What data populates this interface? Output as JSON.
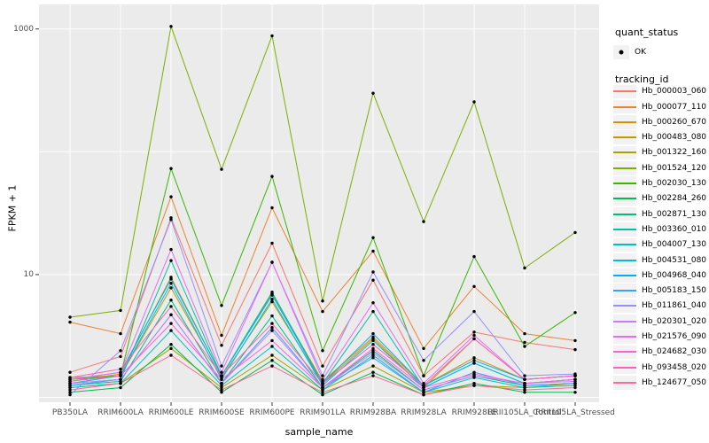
{
  "figure": {
    "background": "#FFFFFF",
    "panel_bg": "#EBEBEB",
    "grid_color": "#FFFFFF",
    "axis_text_color": "#4D4D4D",
    "tick_color": "#333333",
    "point_color": "#000000",
    "legend_key_bg": "#F2F2F2"
  },
  "axes": {
    "y_title": "FPKM + 1",
    "x_title": "sample_name",
    "y_tick_labels": [
      "1000",
      "10"
    ],
    "y_tick_values": [
      1000,
      10
    ]
  },
  "legend": {
    "quant_title": "quant_status",
    "quant_items": [
      {
        "label": "OK",
        "symbol": "point"
      }
    ],
    "tracking_title": "tracking_id"
  },
  "chart_data": {
    "type": "line",
    "title": "",
    "xlabel": "sample_name",
    "ylabel": "FPKM + 1",
    "y_scale": "log10",
    "ylim": [
      1,
      1200
    ],
    "y_breaks_labeled": [
      10,
      1000
    ],
    "y_gridlines": [
      1,
      10,
      100,
      1000
    ],
    "grid": true,
    "legend_position": "right",
    "point_shape": "filled-black-circle",
    "quant_status_all": "OK",
    "categories": [
      "PB350LA",
      "RRIM600LA",
      "RRIM600LE",
      "RRIM600SE",
      "RRIM600PE",
      "RRIM901LA",
      "RRIM928BA",
      "RRIM928LA",
      "RRIM928LE",
      "RRII105LA_Control",
      "RRII105LA_Stressed"
    ],
    "series": [
      {
        "name": "Hb_000003_060",
        "color": "#F8766D",
        "values": [
          1.6,
          2.15,
          29,
          2.65,
          18,
          1.8,
          9.0,
          1.5,
          3.4,
          2.8,
          2.45
        ]
      },
      {
        "name": "Hb_000077_110",
        "color": "#EA8331",
        "values": [
          4.1,
          3.3,
          43,
          3.2,
          35,
          5.0,
          15.5,
          2.5,
          8.0,
          3.3,
          2.9
        ]
      },
      {
        "name": "Hb_000260_670",
        "color": "#D89000",
        "values": [
          1.35,
          1.55,
          9.5,
          1.5,
          7.0,
          1.35,
          3.1,
          1.25,
          2.1,
          1.4,
          1.5
        ]
      },
      {
        "name": "Hb_000483_080",
        "color": "#C09B00",
        "values": [
          1.45,
          1.5,
          7.8,
          1.45,
          6.0,
          1.3,
          3.0,
          1.2,
          3.0,
          1.4,
          1.5
        ]
      },
      {
        "name": "Hb_001322_160",
        "color": "#A3A500",
        "values": [
          1.2,
          1.3,
          2.5,
          1.2,
          2.2,
          1.15,
          1.8,
          1.1,
          1.25,
          1.2,
          1.3
        ]
      },
      {
        "name": "Hb_001524_120",
        "color": "#7CAE00",
        "values": [
          4.5,
          5.1,
          1050,
          72,
          880,
          6.1,
          300,
          27,
          255,
          11.3,
          22
        ]
      },
      {
        "name": "Hb_002030_130",
        "color": "#39B600",
        "values": [
          1.4,
          1.5,
          73,
          5.6,
          63,
          2.4,
          20,
          1.5,
          14,
          2.6,
          4.9
        ]
      },
      {
        "name": "Hb_002284_260",
        "color": "#00BB4E",
        "values": [
          1.1,
          1.2,
          2.7,
          1.1,
          2.0,
          1.05,
          1.6,
          1.05,
          1.3,
          1.1,
          1.1
        ]
      },
      {
        "name": "Hb_002871_130",
        "color": "#00BF7D",
        "values": [
          1.25,
          1.35,
          6.2,
          1.3,
          4.6,
          1.2,
          2.4,
          1.15,
          1.5,
          1.25,
          1.3
        ]
      },
      {
        "name": "Hb_003360_010",
        "color": "#00C1A3",
        "values": [
          1.3,
          1.4,
          13,
          1.5,
          7.2,
          1.3,
          5.0,
          1.2,
          1.9,
          1.3,
          1.4
        ]
      },
      {
        "name": "Hb_004007_130",
        "color": "#00BFC4",
        "values": [
          1.2,
          1.3,
          3.5,
          1.25,
          2.6,
          1.15,
          2.2,
          1.1,
          1.45,
          1.2,
          1.25
        ]
      },
      {
        "name": "Hb_004531_080",
        "color": "#00BAE0",
        "values": [
          1.3,
          1.5,
          8.5,
          1.4,
          6.3,
          1.25,
          2.9,
          1.2,
          1.9,
          1.3,
          1.4
        ]
      },
      {
        "name": "Hb_004968_040",
        "color": "#00B0F6",
        "values": [
          1.4,
          1.6,
          9.2,
          1.5,
          6.8,
          1.3,
          3.3,
          1.25,
          2.0,
          1.4,
          1.5
        ]
      },
      {
        "name": "Hb_005183_150",
        "color": "#35A2FF",
        "values": [
          1.25,
          1.4,
          4.7,
          1.3,
          3.7,
          1.2,
          2.1,
          1.1,
          1.6,
          1.25,
          1.3
        ]
      },
      {
        "name": "Hb_011861_040",
        "color": "#9590FF",
        "values": [
          1.05,
          2.4,
          28,
          1.8,
          12.6,
          1.5,
          10.5,
          2.0,
          5.0,
          1.5,
          1.55
        ]
      },
      {
        "name": "Hb_020301_020",
        "color": "#C77CFF",
        "values": [
          1.3,
          1.4,
          4.7,
          1.3,
          3.5,
          1.2,
          2.3,
          1.15,
          1.5,
          1.3,
          1.35
        ]
      },
      {
        "name": "Hb_021576_090",
        "color": "#E76BF3",
        "values": [
          1.4,
          1.6,
          16,
          1.6,
          12.6,
          1.4,
          5.9,
          1.3,
          3.2,
          1.4,
          1.5
        ]
      },
      {
        "name": "Hb_024682_030",
        "color": "#FA62DB",
        "values": [
          1.35,
          1.5,
          4.0,
          1.4,
          2.9,
          1.2,
          2.5,
          1.2,
          1.55,
          1.3,
          1.4
        ]
      },
      {
        "name": "Hb_093458_020",
        "color": "#FF62BC",
        "values": [
          1.45,
          1.7,
          5.5,
          1.5,
          4.0,
          1.3,
          2.7,
          1.25,
          3.0,
          1.4,
          1.5
        ]
      },
      {
        "name": "Hb_124677_050",
        "color": "#FF6A98",
        "values": [
          1.15,
          1.3,
          2.2,
          1.15,
          1.8,
          1.1,
          1.5,
          1.05,
          1.25,
          1.15,
          1.2
        ]
      }
    ]
  }
}
